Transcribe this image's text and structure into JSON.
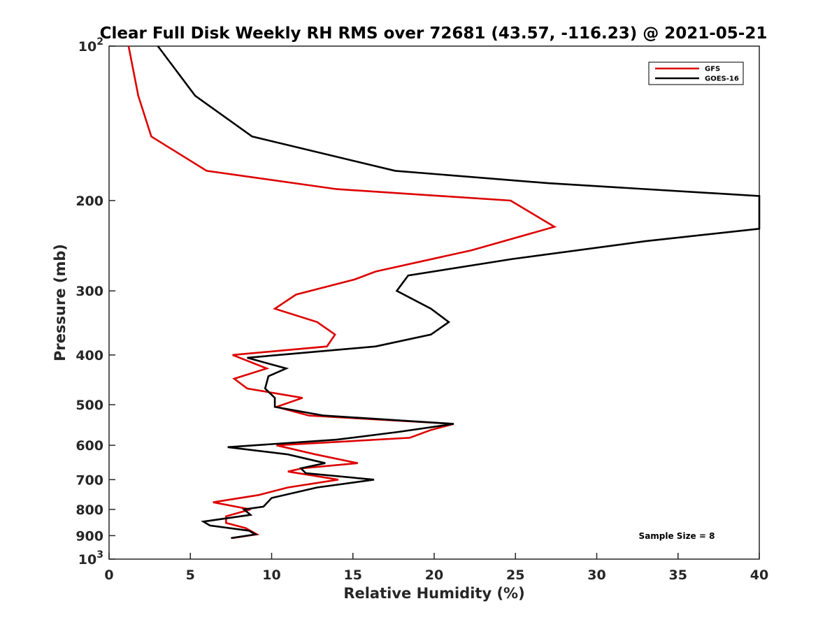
{
  "chart_data": {
    "type": "line",
    "title": "Clear Full Disk Weekly RH RMS over 72681 (43.57, -116.23) @ 2021-05-21",
    "xlabel": "Relative Humidity (%)",
    "ylabel": "Pressure (mb)",
    "xlim": [
      0,
      40
    ],
    "ylim": [
      100,
      1000
    ],
    "y_scale": "log",
    "y_reversed": true,
    "x_ticks": [
      "0",
      "5",
      "10",
      "15",
      "20",
      "25",
      "30",
      "35",
      "40"
    ],
    "y_ticks": [
      {
        "value": 100,
        "base": "10",
        "exp": "2"
      },
      {
        "value": 200,
        "label": "200"
      },
      {
        "value": 300,
        "label": "300"
      },
      {
        "value": 400,
        "label": "400"
      },
      {
        "value": 500,
        "label": "500"
      },
      {
        "value": 600,
        "label": "600"
      },
      {
        "value": 700,
        "label": "700"
      },
      {
        "value": 800,
        "label": "800"
      },
      {
        "value": 900,
        "label": "900"
      },
      {
        "value": 1000,
        "base": "10",
        "exp": "3"
      }
    ],
    "grid": false,
    "legend_position": "top-right",
    "annotation": "Sample Size = 8",
    "series": [
      {
        "name": "GFS",
        "color": "#dd0000",
        "points": [
          [
            1.2,
            100
          ],
          [
            1.8,
            125
          ],
          [
            2.6,
            150
          ],
          [
            6.0,
            175
          ],
          [
            14.0,
            190
          ],
          [
            24.7,
            200
          ],
          [
            27.4,
            225
          ],
          [
            22.3,
            250
          ],
          [
            16.4,
            275
          ],
          [
            15.1,
            285
          ],
          [
            11.5,
            305
          ],
          [
            10.2,
            325
          ],
          [
            12.8,
            345
          ],
          [
            13.9,
            365
          ],
          [
            13.4,
            385
          ],
          [
            7.6,
            400
          ],
          [
            9.7,
            425
          ],
          [
            7.7,
            445
          ],
          [
            8.5,
            465
          ],
          [
            11.9,
            485
          ],
          [
            10.3,
            505
          ],
          [
            12.3,
            525
          ],
          [
            21.2,
            545
          ],
          [
            19.8,
            560
          ],
          [
            18.5,
            580
          ],
          [
            10.3,
            600
          ],
          [
            12.7,
            625
          ],
          [
            15.3,
            650
          ],
          [
            11.9,
            665
          ],
          [
            11.0,
            675
          ],
          [
            14.1,
            700
          ],
          [
            11.0,
            725
          ],
          [
            9.2,
            750
          ],
          [
            6.4,
            775
          ],
          [
            8.7,
            800
          ],
          [
            7.2,
            825
          ],
          [
            7.2,
            850
          ],
          [
            8.4,
            870
          ],
          [
            9.1,
            895
          ],
          [
            7.6,
            910
          ]
        ]
      },
      {
        "name": "GOES-16",
        "color": "#000000",
        "points": [
          [
            3.0,
            100
          ],
          [
            5.3,
            125
          ],
          [
            8.8,
            150
          ],
          [
            17.6,
            175
          ],
          [
            27.0,
            185
          ],
          [
            40.0,
            196
          ],
          [
            40.0,
            227
          ],
          [
            33.0,
            240
          ],
          [
            24.8,
            260
          ],
          [
            18.4,
            280
          ],
          [
            17.7,
            300
          ],
          [
            19.8,
            325
          ],
          [
            20.9,
            345
          ],
          [
            19.8,
            365
          ],
          [
            16.4,
            385
          ],
          [
            8.5,
            405
          ],
          [
            10.9,
            425
          ],
          [
            9.8,
            440
          ],
          [
            9.6,
            465
          ],
          [
            10.2,
            485
          ],
          [
            10.2,
            505
          ],
          [
            13.2,
            525
          ],
          [
            21.2,
            545
          ],
          [
            17.8,
            565
          ],
          [
            14.0,
            585
          ],
          [
            7.3,
            605
          ],
          [
            11.0,
            625
          ],
          [
            13.3,
            650
          ],
          [
            11.8,
            665
          ],
          [
            12.1,
            680
          ],
          [
            16.3,
            700
          ],
          [
            12.8,
            725
          ],
          [
            10.0,
            760
          ],
          [
            9.5,
            790
          ],
          [
            8.3,
            800
          ],
          [
            8.7,
            820
          ],
          [
            5.8,
            845
          ],
          [
            6.2,
            860
          ],
          [
            8.6,
            880
          ],
          [
            9.0,
            895
          ],
          [
            7.5,
            910
          ]
        ]
      }
    ]
  }
}
